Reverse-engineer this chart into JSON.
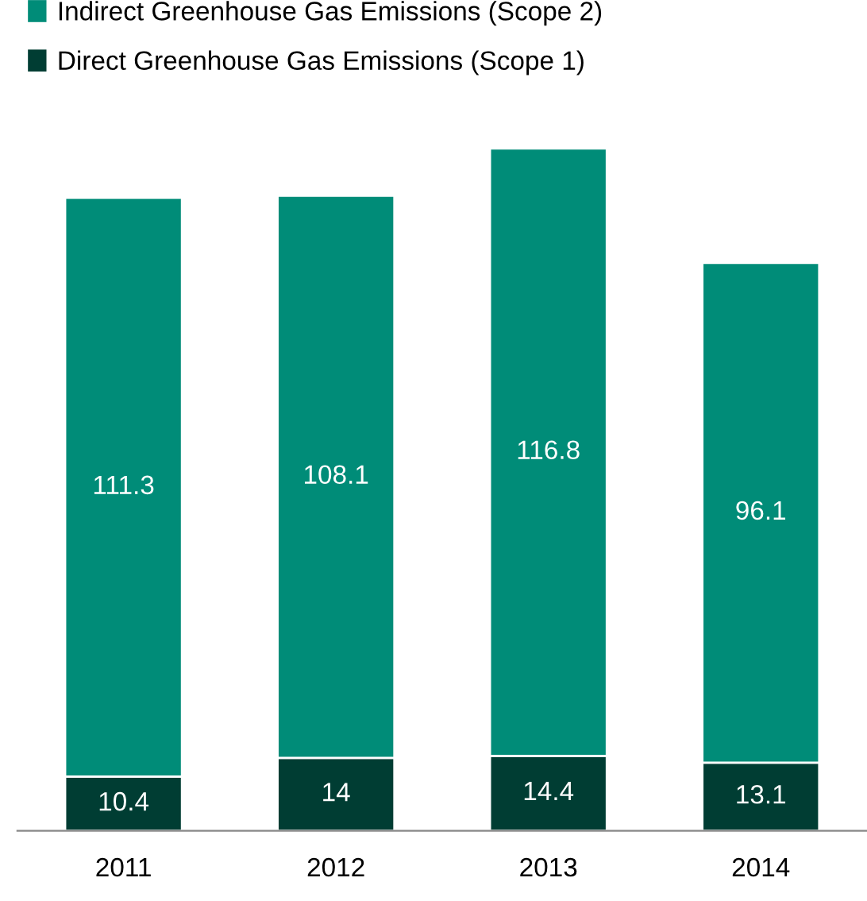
{
  "chart_data": {
    "type": "bar",
    "stacked": true,
    "data_labels": true,
    "legend": "top left",
    "grid": false,
    "categories": [
      "2011",
      "2012",
      "2013",
      "2014"
    ],
    "series": [
      {
        "name": "Direct Greenhouse Gas Emissions (Scope 1)",
        "color": "#003d33",
        "values": [
          10.4,
          14,
          14.4,
          13.1
        ]
      },
      {
        "name": "Indirect Greenhouse Gas Emissions (Scope 2)",
        "color": "#008c78",
        "values": [
          111.3,
          108.1,
          116.8,
          96.1
        ]
      }
    ]
  }
}
